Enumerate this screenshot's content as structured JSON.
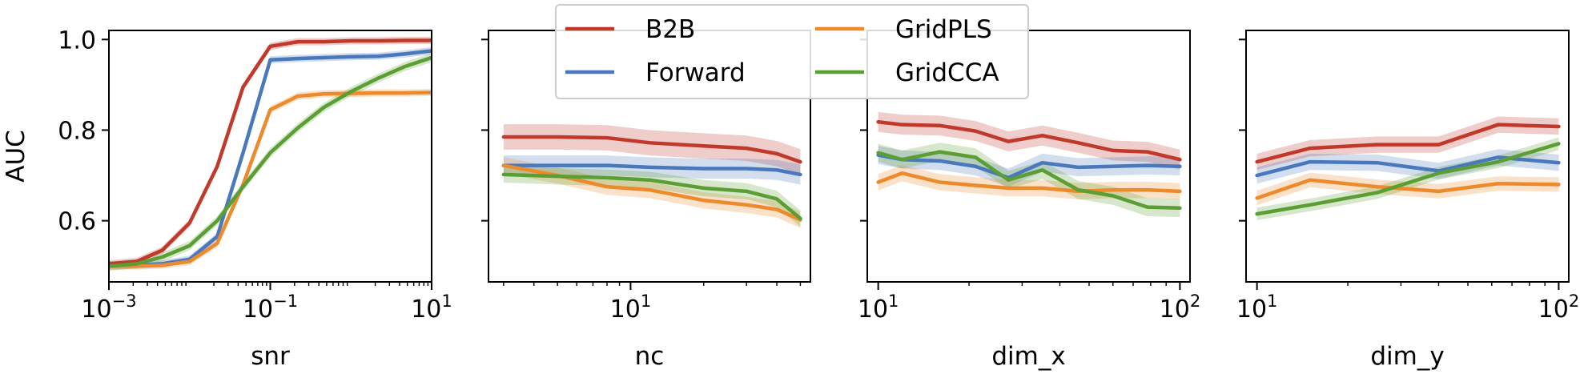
{
  "colors": {
    "B2B": "#c0392b",
    "Forward": "#4a78bd",
    "GridPLS": "#ec8a2c",
    "GridCCA": "#5a9e34"
  },
  "legend": {
    "placement": "top-center",
    "entries": [
      "B2B",
      "Forward",
      "GridPLS",
      "GridCCA"
    ]
  },
  "chart_data": [
    {
      "type": "line",
      "xlabel": "snr",
      "ylabel": "AUC",
      "xscale": "log",
      "xlim": [
        0.001,
        10
      ],
      "ylim": [
        0.465,
        1.02
      ],
      "xticks": [
        {
          "value": 0.001,
          "base": "10",
          "exp": "−3"
        },
        {
          "value": 0.1,
          "base": "10",
          "exp": "−1"
        },
        {
          "value": 10,
          "base": "10",
          "exp": "1"
        }
      ],
      "yticks": [
        {
          "value": 0.6,
          "label": "0.6"
        },
        {
          "value": 0.8,
          "label": "0.8"
        },
        {
          "value": 1.0,
          "label": "1.0"
        }
      ],
      "x": [
        0.001,
        0.0022,
        0.0046,
        0.01,
        0.022,
        0.046,
        0.1,
        0.22,
        0.46,
        1,
        2.2,
        4.6,
        10
      ],
      "series": [
        {
          "name": "B2B",
          "values": [
            0.505,
            0.51,
            0.535,
            0.595,
            0.72,
            0.895,
            0.985,
            0.995,
            0.995,
            0.997,
            0.997,
            0.998,
            0.998
          ],
          "band": 0.008
        },
        {
          "name": "Forward",
          "values": [
            0.5,
            0.502,
            0.505,
            0.515,
            0.565,
            0.75,
            0.955,
            0.958,
            0.96,
            0.962,
            0.963,
            0.968,
            0.975
          ],
          "band": 0.008
        },
        {
          "name": "GridPLS",
          "values": [
            0.5,
            0.5,
            0.502,
            0.51,
            0.55,
            0.68,
            0.845,
            0.875,
            0.88,
            0.881,
            0.882,
            0.882,
            0.883
          ],
          "band": 0.008
        },
        {
          "name": "GridCCA",
          "values": [
            0.5,
            0.505,
            0.52,
            0.545,
            0.6,
            0.675,
            0.75,
            0.805,
            0.85,
            0.885,
            0.915,
            0.94,
            0.96
          ],
          "band": 0.01
        }
      ]
    },
    {
      "type": "line",
      "xlabel": "nc",
      "ylabel": "",
      "xscale": "log",
      "xlim": [
        2.6,
        55
      ],
      "ylim": [
        0.465,
        1.02
      ],
      "xticks": [
        {
          "value": 10,
          "base": "10",
          "exp": "1"
        }
      ],
      "yticks": [
        {
          "value": 0.6,
          "label": ""
        },
        {
          "value": 0.8,
          "label": ""
        },
        {
          "value": 1.0,
          "label": ""
        }
      ],
      "x": [
        3,
        5,
        8,
        12,
        20,
        30,
        40,
        50
      ],
      "series": [
        {
          "name": "B2B",
          "values": [
            0.785,
            0.785,
            0.783,
            0.772,
            0.765,
            0.76,
            0.748,
            0.73
          ],
          "band": 0.028
        },
        {
          "name": "Forward",
          "values": [
            0.722,
            0.722,
            0.722,
            0.718,
            0.715,
            0.715,
            0.712,
            0.702
          ],
          "band": 0.022
        },
        {
          "name": "GridPLS",
          "values": [
            0.722,
            0.7,
            0.675,
            0.668,
            0.645,
            0.635,
            0.625,
            0.602
          ],
          "band": 0.018
        },
        {
          "name": "GridCCA",
          "values": [
            0.702,
            0.698,
            0.695,
            0.69,
            0.672,
            0.665,
            0.648,
            0.605
          ],
          "band": 0.018
        }
      ]
    },
    {
      "type": "line",
      "xlabel": "dim_x",
      "ylabel": "",
      "xscale": "log",
      "xlim": [
        9.2,
        108
      ],
      "ylim": [
        0.465,
        1.02
      ],
      "xticks": [
        {
          "value": 10,
          "base": "10",
          "exp": "1"
        },
        {
          "value": 100,
          "base": "10",
          "exp": "2"
        }
      ],
      "yticks": [
        {
          "value": 0.6,
          "label": ""
        },
        {
          "value": 0.8,
          "label": ""
        },
        {
          "value": 1.0,
          "label": ""
        }
      ],
      "x": [
        10,
        12,
        16,
        21,
        27,
        35,
        46,
        60,
        78,
        100
      ],
      "series": [
        {
          "name": "B2B",
          "values": [
            0.818,
            0.812,
            0.81,
            0.798,
            0.775,
            0.788,
            0.772,
            0.755,
            0.752,
            0.735
          ],
          "band": 0.022
        },
        {
          "name": "Forward",
          "values": [
            0.745,
            0.735,
            0.732,
            0.72,
            0.695,
            0.728,
            0.718,
            0.72,
            0.722,
            0.72
          ],
          "band": 0.02
        },
        {
          "name": "GridPLS",
          "values": [
            0.685,
            0.705,
            0.685,
            0.678,
            0.672,
            0.672,
            0.665,
            0.668,
            0.668,
            0.665
          ],
          "band": 0.018
        },
        {
          "name": "GridCCA",
          "values": [
            0.75,
            0.735,
            0.752,
            0.74,
            0.69,
            0.712,
            0.668,
            0.655,
            0.63,
            0.628
          ],
          "band": 0.02
        }
      ]
    },
    {
      "type": "line",
      "xlabel": "dim_y",
      "ylabel": "",
      "xscale": "log",
      "xlim": [
        9.2,
        108
      ],
      "ylim": [
        0.465,
        1.02
      ],
      "xticks": [
        {
          "value": 10,
          "base": "10",
          "exp": "1"
        },
        {
          "value": 100,
          "base": "10",
          "exp": "2"
        }
      ],
      "yticks": [
        {
          "value": 0.6,
          "label": ""
        },
        {
          "value": 0.8,
          "label": ""
        },
        {
          "value": 1.0,
          "label": ""
        }
      ],
      "x": [
        10,
        15,
        25,
        40,
        63,
        100
      ],
      "series": [
        {
          "name": "B2B",
          "values": [
            0.73,
            0.76,
            0.768,
            0.768,
            0.812,
            0.808
          ],
          "band": 0.018
        },
        {
          "name": "Forward",
          "values": [
            0.7,
            0.73,
            0.728,
            0.71,
            0.74,
            0.728
          ],
          "band": 0.018
        },
        {
          "name": "GridPLS",
          "values": [
            0.65,
            0.69,
            0.675,
            0.665,
            0.682,
            0.68
          ],
          "band": 0.016
        },
        {
          "name": "GridCCA",
          "values": [
            0.615,
            0.635,
            0.662,
            0.705,
            0.73,
            0.77
          ],
          "band": 0.014
        }
      ]
    }
  ]
}
